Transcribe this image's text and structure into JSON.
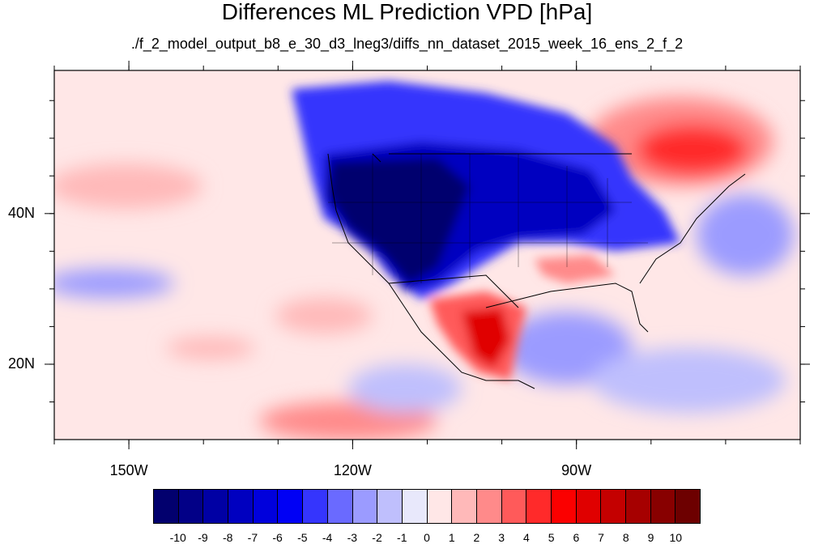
{
  "title": "Differences ML Prediction VPD [hPa]",
  "subtitle": "./f_2_model_output_b8_e_30_d3_lneg3/diffs_nn_dataset_2015_week_16_ens_2_f_2",
  "map": {
    "projection": "cylindrical-equidistant",
    "lon_range": [
      -160,
      -60
    ],
    "lat_range": [
      10,
      59
    ],
    "lat_ticks": [
      {
        "lat": 20,
        "label": "20N"
      },
      {
        "lat": 40,
        "label": "40N"
      }
    ],
    "lon_ticks": [
      {
        "lon": -150,
        "label": "150W"
      },
      {
        "lon": -120,
        "label": "120W"
      },
      {
        "lon": -90,
        "label": "90W"
      }
    ],
    "field": "VPD difference (hPa)",
    "regions_shading": [
      {
        "region": "western and central United States",
        "value": -10
      },
      {
        "region": "Great Lakes and northeastern US",
        "value": -6
      },
      {
        "region": "northern Mexico plateau",
        "value": 5
      },
      {
        "region": "southern Texas",
        "value": 3
      },
      {
        "region": "eastern Canada / North Atlantic",
        "value": 4
      },
      {
        "region": "Gulf of Mexico",
        "value": -3
      },
      {
        "region": "eastern Pacific subtropics",
        "value": -3
      },
      {
        "region": "central North Pacific",
        "value": 1
      }
    ]
  },
  "colorbar": {
    "labels": [
      "-10",
      "-9",
      "-8",
      "-7",
      "-6",
      "-5",
      "-4",
      "-3",
      "-2",
      "-1",
      "0",
      "1",
      "2",
      "3",
      "4",
      "5",
      "6",
      "7",
      "8",
      "9",
      "10"
    ],
    "colors": [
      "#02006e",
      "#020087",
      "#0000a4",
      "#0000c0",
      "#0000dc",
      "#0000f5",
      "#3535fd",
      "#6a6aff",
      "#9b9bff",
      "#bfbffd",
      "#e8e8fb",
      "#ffe7e7",
      "#ffb9b9",
      "#ff8a8a",
      "#ff5a5a",
      "#ff2a2a",
      "#fb0000",
      "#e00000",
      "#c40000",
      "#a60000",
      "#880000",
      "#6d0000"
    ]
  }
}
